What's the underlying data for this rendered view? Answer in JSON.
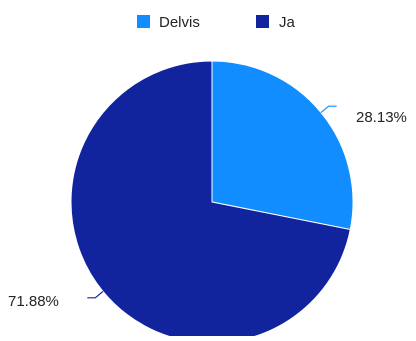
{
  "chart_data": {
    "type": "pie",
    "title": "",
    "legend": {
      "position": "top-center"
    },
    "series": [
      {
        "name": "Delvis",
        "value": 28.13,
        "label": "28.13%",
        "color": "#118DFF"
      },
      {
        "name": "Ja",
        "value": 71.88,
        "label": "71.88%",
        "color": "#12239E"
      }
    ]
  }
}
